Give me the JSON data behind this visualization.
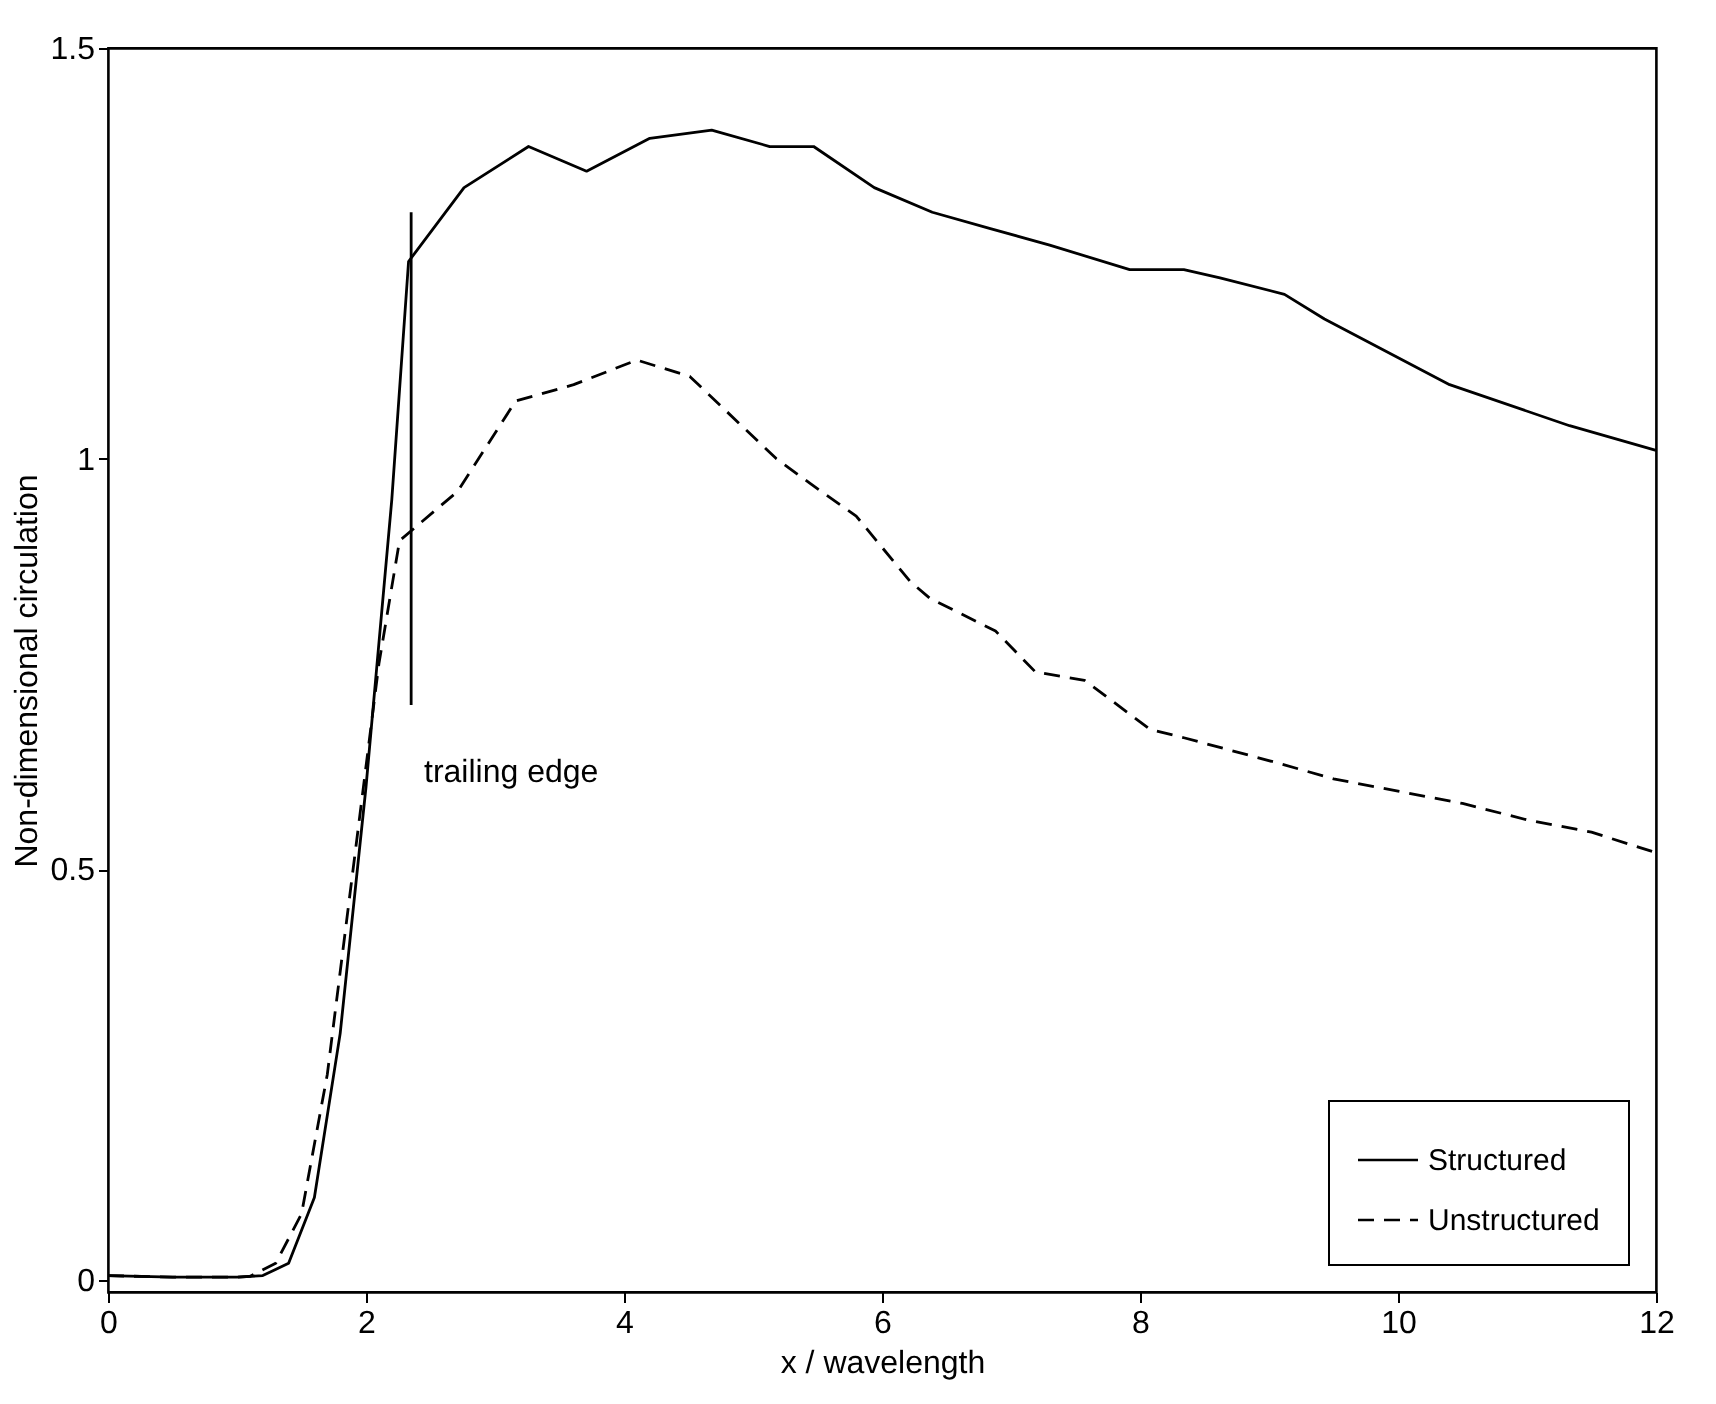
{
  "chart_data": {
    "type": "line",
    "xlabel": "x / wavelength",
    "ylabel": "Non-dimensional circulation",
    "xlim": [
      0,
      12
    ],
    "xticks": [
      0,
      2,
      4,
      6,
      8,
      10,
      12
    ],
    "ylim": [
      -0.015,
      1.5
    ],
    "yticks": [
      0,
      0.5,
      1,
      1.5
    ],
    "legend": "bottom right",
    "annotations": [
      "trailing edge"
    ],
    "series": [
      {
        "name": "Structured",
        "color": "#000000",
        "line_style": "solid",
        "x": [
          0,
          0.5,
          1.0,
          1.2,
          1.4,
          1.6,
          1.8,
          2.0,
          2.2,
          2.33,
          2.76,
          3.26,
          3.71,
          4.2,
          4.68,
          5.13,
          5.47,
          5.94,
          6.39,
          6.84,
          7.3,
          7.92,
          8.34,
          8.62,
          9.12,
          9.43,
          10.4,
          11.33,
          12
        ],
        "values": [
          0.005,
          0.003,
          0.003,
          0.005,
          0.02,
          0.1,
          0.3,
          0.6,
          0.95,
          1.24,
          1.33,
          1.38,
          1.35,
          1.39,
          1.4,
          1.38,
          1.38,
          1.33,
          1.3,
          1.28,
          1.26,
          1.23,
          1.23,
          1.22,
          1.2,
          1.17,
          1.09,
          1.04,
          1.01
        ]
      },
      {
        "name": "Unstructured",
        "color": "#000000",
        "line_style": "dashed",
        "x": [
          0,
          0.5,
          1.0,
          1.1,
          1.3,
          1.5,
          1.7,
          1.9,
          2.1,
          2.26,
          2.71,
          3.16,
          3.61,
          4.1,
          4.51,
          5.18,
          5.44,
          5.8,
          6.22,
          6.37,
          6.88,
          7.19,
          7.57,
          8.08,
          8.34,
          9.05,
          9.5,
          10,
          10.5,
          11,
          11.5,
          12
        ],
        "values": [
          0.005,
          0.003,
          0.003,
          0.004,
          0.02,
          0.08,
          0.25,
          0.5,
          0.75,
          0.9,
          0.96,
          1.07,
          1.09,
          1.12,
          1.1,
          1.0,
          0.97,
          0.93,
          0.85,
          0.83,
          0.79,
          0.74,
          0.73,
          0.67,
          0.66,
          0.63,
          0.61,
          0.595,
          0.58,
          0.56,
          0.545,
          0.52
        ]
      },
      {
        "color": "#000000",
        "line_style": "solid",
        "x": [
          2.35,
          2.35
        ],
        "values": [
          0.7,
          1.3
        ]
      }
    ]
  }
}
